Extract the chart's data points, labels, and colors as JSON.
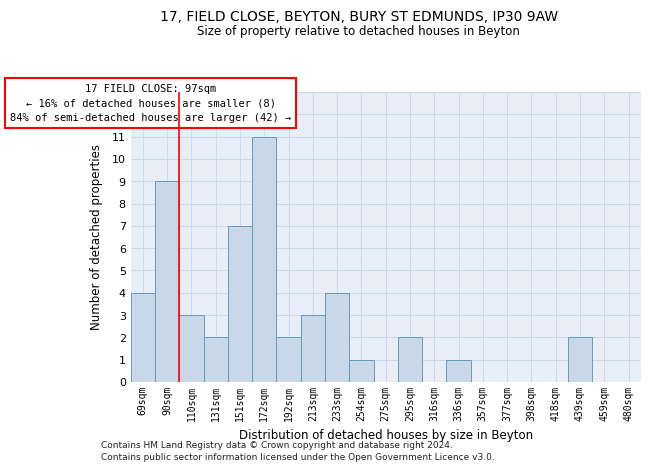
{
  "title_line1": "17, FIELD CLOSE, BEYTON, BURY ST EDMUNDS, IP30 9AW",
  "title_line2": "Size of property relative to detached houses in Beyton",
  "xlabel": "Distribution of detached houses by size in Beyton",
  "ylabel": "Number of detached properties",
  "categories": [
    "69sqm",
    "90sqm",
    "110sqm",
    "131sqm",
    "151sqm",
    "172sqm",
    "192sqm",
    "213sqm",
    "233sqm",
    "254sqm",
    "275sqm",
    "295sqm",
    "316sqm",
    "336sqm",
    "357sqm",
    "377sqm",
    "398sqm",
    "418sqm",
    "439sqm",
    "459sqm",
    "480sqm"
  ],
  "values": [
    4,
    9,
    3,
    2,
    7,
    11,
    2,
    3,
    4,
    1,
    0,
    2,
    0,
    1,
    0,
    0,
    0,
    0,
    2,
    0,
    0
  ],
  "bar_color": "#c8d8e8",
  "bar_edge_color": "#6a9ab8",
  "bar_linewidth": 0.7,
  "vline_color": "red",
  "vline_linewidth": 1.2,
  "annotation_text": "17 FIELD CLOSE: 97sqm\n← 16% of detached houses are smaller (8)\n84% of semi-detached houses are larger (42) →",
  "ylim": [
    0,
    13
  ],
  "yticks": [
    0,
    1,
    2,
    3,
    4,
    5,
    6,
    7,
    8,
    9,
    10,
    11,
    12,
    13
  ],
  "grid_color": "#cdd8ea",
  "bg_color": "#e8eef8",
  "footer_line1": "Contains HM Land Registry data © Crown copyright and database right 2024.",
  "footer_line2": "Contains public sector information licensed under the Open Government Licence v3.0."
}
